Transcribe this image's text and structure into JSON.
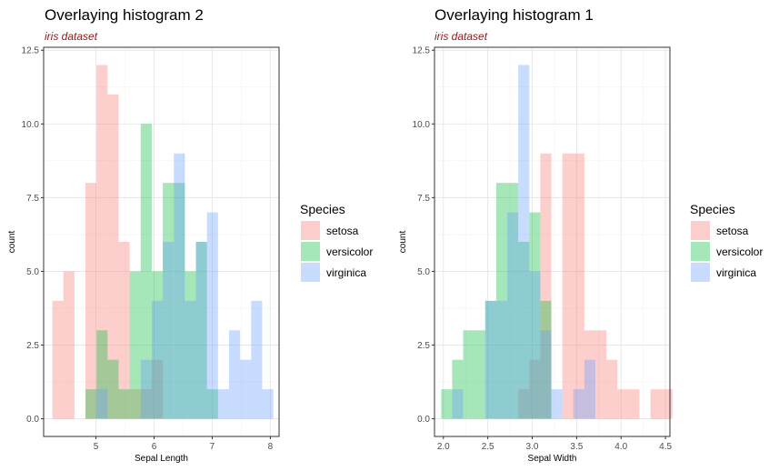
{
  "chart_data": [
    {
      "type": "bar",
      "title": "Overlaying histogram 2",
      "subtitle": "iris dataset",
      "xlabel": "Sepal Length",
      "ylabel": "count",
      "xlim": [
        4.1,
        8.15
      ],
      "ylim": [
        -0.6,
        12.6
      ],
      "xticks": [
        5,
        6,
        7,
        8
      ],
      "xtick_labels": [
        "5",
        "6",
        "7",
        "8"
      ],
      "yticks": [
        0,
        2.5,
        5,
        7.5,
        10,
        12.5
      ],
      "ytick_labels": [
        "0.0",
        "2.5",
        "5.0",
        "7.5",
        "10.0",
        "12.5"
      ],
      "bin_start": 4.25,
      "bin_width": 0.19,
      "opacity": 0.35,
      "grid": true,
      "legend": {
        "title": "Species",
        "position": "right"
      },
      "series": [
        {
          "name": "setosa",
          "color": "#f8766d",
          "values": [
            4,
            5,
            0,
            8,
            12,
            11,
            6,
            1,
            1,
            2,
            0,
            0,
            0,
            0,
            0,
            0,
            0,
            0,
            0,
            0
          ]
        },
        {
          "name": "versicolor",
          "color": "#00ba38",
          "values": [
            0,
            0,
            0,
            1,
            3,
            2,
            1,
            5,
            10,
            5,
            8,
            8,
            5,
            6,
            1,
            0,
            0,
            0,
            0,
            0
          ]
        },
        {
          "name": "virginica",
          "color": "#619cff",
          "values": [
            0,
            0,
            0,
            0,
            1,
            0,
            0,
            0,
            2,
            4,
            6,
            9,
            4,
            6,
            7,
            1,
            3,
            2,
            4,
            1
          ]
        }
      ]
    },
    {
      "type": "bar",
      "title": "Overlaying histogram 1",
      "subtitle": "iris dataset",
      "xlabel": "Sepal Width",
      "ylabel": "count",
      "xlim": [
        1.9,
        4.55
      ],
      "ylim": [
        -0.6,
        12.6
      ],
      "xticks": [
        2,
        2.5,
        3,
        3.5,
        4,
        4.5
      ],
      "xtick_labels": [
        "2.0",
        "2.5",
        "3.0",
        "3.5",
        "4.0",
        "4.5"
      ],
      "yticks": [
        0,
        2.5,
        5,
        7.5,
        10,
        12.5
      ],
      "ytick_labels": [
        "0.0",
        "2.5",
        "5.0",
        "7.5",
        "10.0",
        "12.5"
      ],
      "bin_start": 1.975,
      "bin_width": 0.124,
      "opacity": 0.35,
      "grid": true,
      "legend": {
        "title": "Species",
        "position": "right"
      },
      "series": [
        {
          "name": "setosa",
          "color": "#f8766d",
          "values": [
            0,
            0,
            0,
            0,
            0,
            0,
            0,
            1,
            2,
            9,
            0,
            9,
            9,
            3,
            3,
            2,
            1,
            1,
            0,
            1,
            1
          ]
        },
        {
          "name": "versicolor",
          "color": "#00ba38",
          "values": [
            1,
            2,
            3,
            3,
            4,
            8,
            8,
            6,
            7,
            4,
            0,
            0,
            0,
            0,
            0,
            0,
            0,
            0,
            0,
            0,
            0
          ]
        },
        {
          "name": "virginica",
          "color": "#619cff",
          "values": [
            0,
            1,
            0,
            0,
            4,
            4,
            7,
            12,
            5,
            3,
            1,
            0,
            1,
            2,
            0,
            0,
            0,
            0,
            0,
            0,
            0
          ]
        }
      ]
    }
  ]
}
